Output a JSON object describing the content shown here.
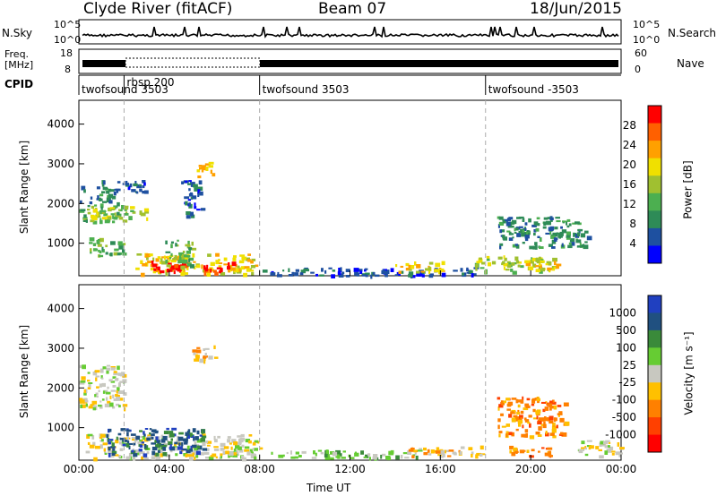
{
  "header": {
    "station": "Clyde River (fitACF)",
    "beam": "Beam 07",
    "date": "18/Jun/2015"
  },
  "strip_labels": {
    "nsky": "N.Sky",
    "nsearch": "N.Search",
    "freq_top": "Freq.",
    "freq_unit": "[MHz]",
    "nave": "Nave",
    "cpid": "CPID",
    "nsky_ticks": [
      "10^5",
      "10^0"
    ],
    "nsearch_ticks": [
      "10^5",
      "10^0"
    ],
    "freq_ticks": [
      "18",
      "8"
    ],
    "nave_ticks": [
      "60",
      "0"
    ]
  },
  "cpid_segments": [
    {
      "label": "twofsound 3503",
      "start_hour": 0.0
    },
    {
      "label": "rbsp 200",
      "start_hour": 2.0
    },
    {
      "label": "twofsound 3503",
      "start_hour": 8.0
    },
    {
      "label": "twofsound -3503",
      "start_hour": 18.0
    }
  ],
  "x_axis": {
    "label": "Time UT",
    "ticks": [
      "00:00",
      "04:00",
      "08:00",
      "12:00",
      "16:00",
      "20:00",
      "00:00"
    ]
  },
  "power_panel": {
    "ylabel": "Slant Range [km]",
    "yticks": [
      "1000",
      "2000",
      "3000",
      "4000"
    ],
    "colorbar_label": "Power [dB]",
    "colorbar_ticks": [
      "4",
      "8",
      "12",
      "16",
      "20",
      "24",
      "28"
    ]
  },
  "velocity_panel": {
    "ylabel": "Slant Range [km]",
    "yticks": [
      "1000",
      "2000",
      "3000",
      "4000"
    ],
    "colorbar_label": "Velocity [m s⁻¹]",
    "colorbar_ticks": [
      "1000",
      "500",
      "100",
      "25",
      "-25",
      "-100",
      "-500",
      "-1000"
    ]
  },
  "colors": {
    "power_scale": [
      "#0000ff",
      "#1e50a0",
      "#2e8b57",
      "#4caf50",
      "#a0c030",
      "#f0e000",
      "#ffa000",
      "#ff6000",
      "#ff0000"
    ],
    "velocity_scale": [
      "#2040c0",
      "#205080",
      "#3a8a3a",
      "#66cc33",
      "#c8c8c0",
      "#ffc000",
      "#ff8000",
      "#ff4000",
      "#ff0000"
    ],
    "guide_line": "#aaaaaa"
  },
  "chart_data": {
    "type": "heatmap",
    "x_range_hours": [
      0,
      24
    ],
    "y_range_km": [
      180,
      4600
    ],
    "power_blobs": [
      {
        "t0": 0.0,
        "t1": 2.0,
        "r0": 1550,
        "r1": 2050,
        "level": 3
      },
      {
        "t0": 0.5,
        "t1": 3.0,
        "r0": 1650,
        "r1": 1950,
        "level": 4
      },
      {
        "t0": 0.0,
        "t1": 1.5,
        "r0": 2050,
        "r1": 2450,
        "level": 2
      },
      {
        "t0": 0.3,
        "t1": 2.0,
        "r0": 700,
        "r1": 1150,
        "level": 3
      },
      {
        "t0": 1.0,
        "t1": 3.0,
        "r0": 2300,
        "r1": 2600,
        "level": 1
      },
      {
        "t0": 2.5,
        "t1": 7.8,
        "r0": 250,
        "r1": 750,
        "level": 5
      },
      {
        "t0": 3.2,
        "t1": 4.8,
        "r0": 300,
        "r1": 650,
        "level": 8
      },
      {
        "t0": 5.5,
        "t1": 6.8,
        "r0": 280,
        "r1": 550,
        "level": 8
      },
      {
        "t0": 3.8,
        "t1": 5.0,
        "r0": 400,
        "r1": 1100,
        "level": 3
      },
      {
        "t0": 5.2,
        "t1": 6.0,
        "r0": 2700,
        "r1": 3050,
        "level": 6
      },
      {
        "t0": 4.5,
        "t1": 5.4,
        "r0": 1700,
        "r1": 2600,
        "level": 1
      },
      {
        "t0": 8.0,
        "t1": 17.5,
        "r0": 200,
        "r1": 400,
        "level": 1
      },
      {
        "t0": 14.0,
        "t1": 16.2,
        "r0": 300,
        "r1": 550,
        "level": 5
      },
      {
        "t0": 17.5,
        "t1": 21.0,
        "r0": 300,
        "r1": 700,
        "level": 4
      },
      {
        "t0": 18.5,
        "t1": 22.5,
        "r0": 900,
        "r1": 1700,
        "level": 2
      },
      {
        "t0": 19.2,
        "t1": 21.2,
        "r0": 350,
        "r1": 600,
        "level": 5
      }
    ],
    "velocity_blobs": [
      {
        "t0": 0.0,
        "t1": 2.0,
        "r0": 1500,
        "r1": 2600,
        "level": 4
      },
      {
        "t0": 0.3,
        "t1": 8.0,
        "r0": 250,
        "r1": 850,
        "level": 4
      },
      {
        "t0": 1.2,
        "t1": 5.5,
        "r0": 350,
        "r1": 1000,
        "level": 1
      },
      {
        "t0": 5.0,
        "t1": 6.0,
        "r0": 2700,
        "r1": 3100,
        "level": 5
      },
      {
        "t0": 8.5,
        "t1": 15.0,
        "r0": 250,
        "r1": 450,
        "level": 3
      },
      {
        "t0": 14.5,
        "t1": 18.0,
        "r0": 300,
        "r1": 550,
        "level": 5
      },
      {
        "t0": 18.5,
        "t1": 21.5,
        "r0": 800,
        "r1": 1800,
        "level": 6
      },
      {
        "t0": 19.0,
        "t1": 21.0,
        "r0": 300,
        "r1": 550,
        "level": 6
      },
      {
        "t0": 22.0,
        "t1": 24.0,
        "r0": 300,
        "r1": 700,
        "level": 4
      }
    ]
  }
}
